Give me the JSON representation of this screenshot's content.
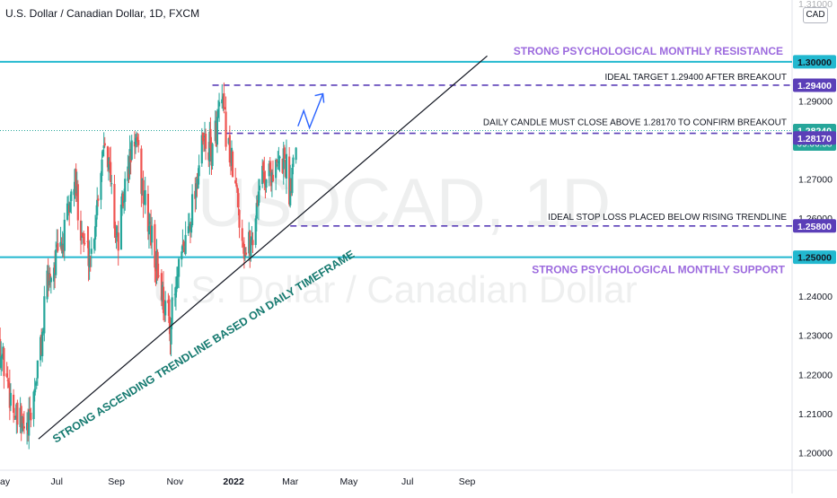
{
  "header": {
    "title": "U.S. Dollar / Canadian Dollar, 1D, FXCM",
    "currency": "CAD"
  },
  "watermark": {
    "symbol": "USDCAD, 1D",
    "name": "U.S. Dollar / Canadian Dollar"
  },
  "colors": {
    "up": "#26a69a",
    "down": "#ef5350",
    "level": "#22b8cf",
    "dashed": "#5b3fb8",
    "purple_text": "#9c6ade",
    "teal_text": "#14796f",
    "trendline": "#131722",
    "arrow": "#2962ff"
  },
  "chart_data": {
    "type": "candlestick",
    "title": "U.S. Dollar / Canadian Dollar, 1D, FXCM",
    "ylim": [
      1.1955,
      1.3158
    ],
    "y_ticks": [
      1.2,
      1.21,
      1.22,
      1.23,
      1.24,
      1.26,
      1.27,
      1.29
    ],
    "y_tick_labels": [
      "1.20000",
      "1.21000",
      "1.22000",
      "1.23000",
      "1.24000",
      "1.26000",
      "1.27000",
      "1.29000"
    ],
    "top_partial_label": "1.31000",
    "x_ticks": [
      {
        "label": "ay",
        "date": "2021-05-01"
      },
      {
        "label": "Jul",
        "date": "2021-07-01"
      },
      {
        "label": "Sep",
        "date": "2021-09-01"
      },
      {
        "label": "Nov",
        "date": "2021-11-01"
      },
      {
        "label": "2022",
        "date": "2022-01-01"
      },
      {
        "label": "Mar",
        "date": "2022-03-01"
      },
      {
        "label": "May",
        "date": "2022-05-01"
      },
      {
        "label": "Jul",
        "date": "2022-07-01"
      },
      {
        "label": "Sep",
        "date": "2022-09-01"
      }
    ],
    "candle_anchors": [
      {
        "date": "2021-05-01",
        "close": 1.229
      },
      {
        "date": "2021-05-20",
        "close": 1.208
      },
      {
        "date": "2021-06-01",
        "close": 1.205
      },
      {
        "date": "2021-06-16",
        "close": 1.23
      },
      {
        "date": "2021-06-21",
        "close": 1.244
      },
      {
        "date": "2021-07-08",
        "close": 1.254
      },
      {
        "date": "2021-07-19",
        "close": 1.27
      },
      {
        "date": "2021-07-30",
        "close": 1.252
      },
      {
        "date": "2021-08-06",
        "close": 1.251
      },
      {
        "date": "2021-08-20",
        "close": 1.283
      },
      {
        "date": "2021-09-02",
        "close": 1.253
      },
      {
        "date": "2021-09-10",
        "close": 1.268
      },
      {
        "date": "2021-09-20",
        "close": 1.281
      },
      {
        "date": "2021-10-01",
        "close": 1.263
      },
      {
        "date": "2021-10-21",
        "close": 1.238
      },
      {
        "date": "2021-10-27",
        "close": 1.233
      },
      {
        "date": "2021-11-03",
        "close": 1.243
      },
      {
        "date": "2021-11-15",
        "close": 1.258
      },
      {
        "date": "2021-11-30",
        "close": 1.279
      },
      {
        "date": "2021-12-10",
        "close": 1.277
      },
      {
        "date": "2021-12-19",
        "close": 1.29
      },
      {
        "date": "2021-12-31",
        "close": 1.272
      },
      {
        "date": "2022-01-06",
        "close": 1.263
      },
      {
        "date": "2022-01-13",
        "close": 1.251
      },
      {
        "date": "2022-01-21",
        "close": 1.255
      },
      {
        "date": "2022-01-28",
        "close": 1.27
      },
      {
        "date": "2022-02-08",
        "close": 1.272
      },
      {
        "date": "2022-02-15",
        "close": 1.272
      },
      {
        "date": "2022-02-23",
        "close": 1.276
      },
      {
        "date": "2022-02-28",
        "close": 1.267
      },
      {
        "date": "2022-03-07",
        "close": 1.282
      }
    ],
    "levels": [
      {
        "name": "resistance",
        "value": 1.3,
        "label": "1.30000",
        "style": "solid"
      },
      {
        "name": "target",
        "value": 1.294,
        "label": "1.29400",
        "style": "dashed"
      },
      {
        "name": "current",
        "value": 1.2824,
        "label": "1.28240",
        "countdown": "09:06:58",
        "style": "dotted"
      },
      {
        "name": "confirm",
        "value": 1.2817,
        "label": "1.28170",
        "style": "dashed"
      },
      {
        "name": "stop",
        "value": 1.258,
        "label": "1.25800",
        "style": "dashed"
      },
      {
        "name": "support",
        "value": 1.25,
        "label": "1.25000",
        "style": "solid"
      }
    ],
    "trendline": {
      "start": {
        "date": "2021-06-12",
        "value": 1.2035
      },
      "end": {
        "date": "2022-09-22",
        "value": 1.3015
      }
    },
    "projection": {
      "start": {
        "date": "2022-03-09",
        "value": 1.2835
      },
      "points": [
        {
          "date": "2022-03-15",
          "value": 1.2875
        },
        {
          "date": "2022-03-21",
          "value": 1.2831
        },
        {
          "date": "2022-04-04",
          "value": 1.2918
        }
      ]
    },
    "annotations": {
      "resistance": "STRONG PSYCHOLOGICAL MONTHLY RESISTANCE",
      "support": "STRONG PSYCHOLOGICAL MONTHLY SUPPORT",
      "target": "IDEAL TARGET 1.29400 AFTER BREAKOUT",
      "confirm": "DAILY CANDLE MUST CLOSE ABOVE 1.28170 TO CONFIRM BREAKOUT",
      "stop": "IDEAL STOP LOSS PLACED BELOW RISING TRENDLINE",
      "trendline": "STRONG ASCENDING TRENDLINE BASED ON DAILY TIMEFRAME"
    }
  }
}
